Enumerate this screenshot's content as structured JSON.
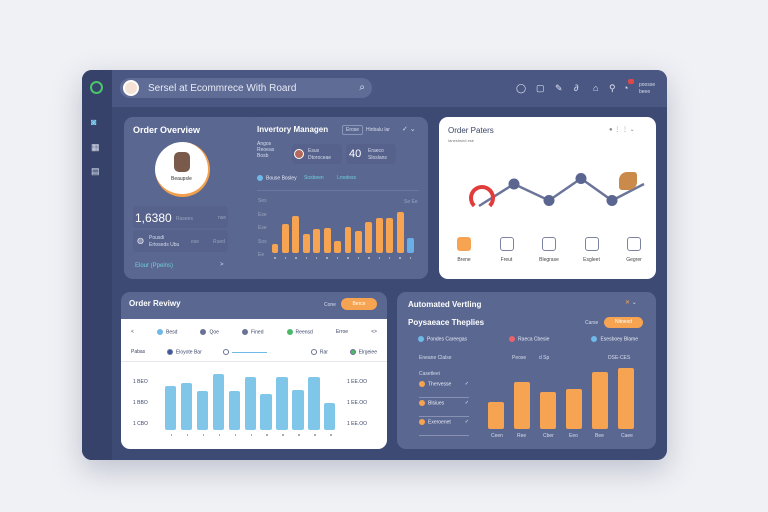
{
  "header": {
    "search_text": "Sersel at Ecommrece With Roard",
    "user_line1": "poosse",
    "user_line2": "beee",
    "icons": [
      "chat-icon",
      "square-icon",
      "pen-icon",
      "link-icon",
      "home-icon",
      "bag-icon",
      "bell-icon"
    ]
  },
  "sidebar": {
    "items": [
      "dashboard-icon",
      "grid-icon",
      "orders-icon"
    ]
  },
  "order_overview": {
    "title": "Order Overview",
    "avatar_label": "Beaupsle",
    "total": "1,6380",
    "total_unit": "Rasees",
    "total_tag": "nse",
    "sub_line1": "Pousdi",
    "sub_line2": "Ertoseds Ubu",
    "sub_val1": "ese",
    "sub_val2": "Rued",
    "link": "Elour (Ppelns)",
    "link_arrow": ">"
  },
  "inventory": {
    "title": "Invertory Managen",
    "badge": "Erose",
    "badge_label": "Hinbalu lar",
    "info": [
      "Angos",
      "Reoeas",
      "Bosb"
    ],
    "person_line1": "Esus",
    "person_line2": "Dtoroceae",
    "big": "40",
    "big_label1": "Eraeco",
    "big_label2": "Sloslans",
    "legend1": "Bouse Bosley",
    "legend2": "Sosbeen",
    "legend3": "Lnodess",
    "y_ticks": [
      "Ses",
      "Ese",
      "Ese",
      "Sos",
      "Ee"
    ],
    "right_label": "Se Ee",
    "chart_data": {
      "type": "bar",
      "values": [
        8,
        26,
        34,
        17,
        22,
        23,
        11,
        24,
        20,
        28,
        32,
        32,
        37,
        14
      ],
      "highlight_last": true,
      "colors": {
        "bar": "#f6a452",
        "last": "#6aaee6"
      }
    }
  },
  "order_paters": {
    "title": "Order Paters",
    "subtitle": "Ianeshsnd ese",
    "items": [
      {
        "label": "Brene",
        "icon": "music-file-icon",
        "active": true
      },
      {
        "label": "Freut",
        "icon": "chart-icon"
      },
      {
        "label": "Blegrase",
        "icon": "report-icon"
      },
      {
        "label": "Esgleet",
        "icon": "document-icon"
      },
      {
        "label": "Gegrer",
        "icon": "edit-icon"
      }
    ],
    "chart_data": {
      "type": "line",
      "values": [
        1,
        3,
        1.5,
        3.5,
        1.5,
        3
      ],
      "colors": {
        "line": "#6b7499",
        "node": "#5a6590"
      }
    }
  },
  "order_review": {
    "title": "Order Reviwy",
    "filter_label": "Cone",
    "button": "Berce",
    "filters_row1": [
      "<",
      "Besd",
      "Qoe",
      "Fined",
      "Reensd",
      "Erroe",
      "<>"
    ],
    "filters_row2": [
      "Pabas",
      "Eloyote Bar",
      "",
      "",
      "Rar",
      "Elrgeiee"
    ],
    "y_left": [
      "1 BEO",
      "1 BBO",
      "1 CBO"
    ],
    "y_right": [
      "1 EE.OO",
      "1 EE.OO",
      "1 EE.OO"
    ],
    "chart_data": {
      "type": "bar",
      "values": [
        78,
        84,
        70,
        100,
        70,
        95,
        65,
        95,
        72,
        95,
        48
      ],
      "colors": {
        "bar": "#7fc6e8"
      }
    }
  },
  "automated": {
    "title": "Automated Vertling",
    "subtitle": "Poysaeace Theplies",
    "filter_label": "Carse",
    "button": "Nitoesd",
    "legend": [
      {
        "label": "Pondes Careegas",
        "color": "#6fb9e8"
      },
      {
        "label": "Raeca Cbesie",
        "color": "#e8636a"
      },
      {
        "label": "Esesboey Blame",
        "color": "#6fb9e8"
      }
    ],
    "side_title": "Eneane Clalse",
    "side_sub": "Casetleei",
    "side_items": [
      "Thervesse",
      "Blsiues",
      "Exeroenet"
    ],
    "top_labels": [
      "Peose",
      "d Sp",
      "DSE-CES"
    ],
    "chart_data": {
      "type": "bar",
      "categories": [
        "Ceen",
        "Ree",
        "Cber",
        "Eeo",
        "Bee",
        "Caee"
      ],
      "values": [
        35,
        62,
        48,
        52,
        75,
        80
      ],
      "colors": {
        "bar": "#f6a452"
      }
    }
  }
}
